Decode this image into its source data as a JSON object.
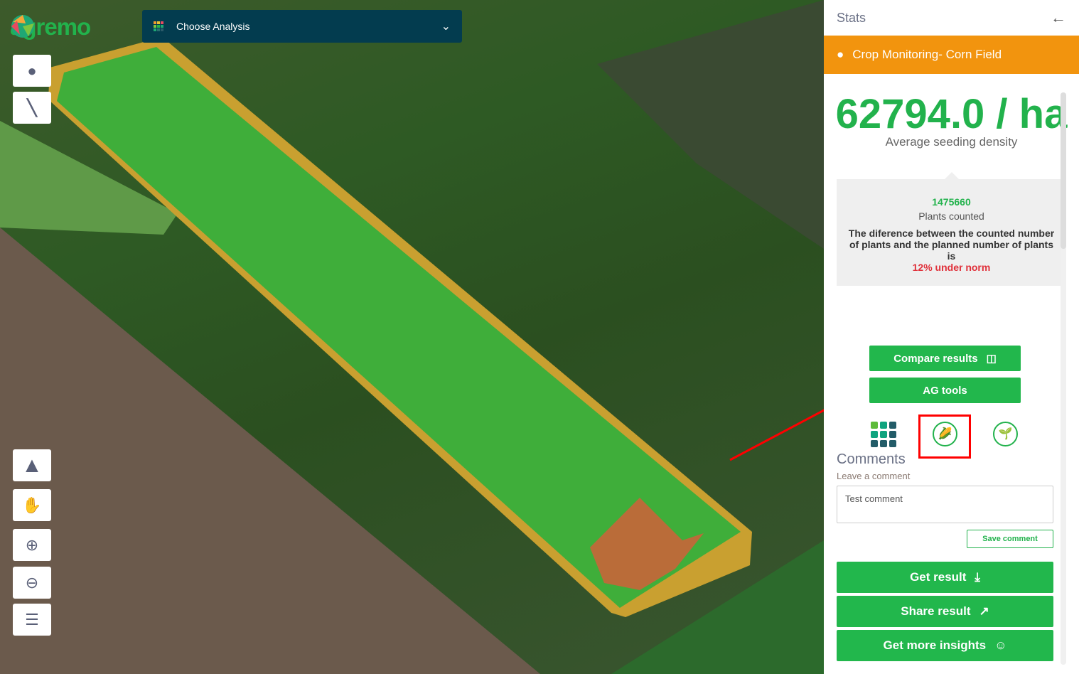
{
  "header": {
    "logo": "agremo",
    "analysis_label": "Choose Analysis"
  },
  "map_tools": [
    "marker-icon",
    "ruler-icon",
    "terrain-icon",
    "gesture-icon",
    "zoom-in-icon",
    "zoom-out-icon",
    "layers-icon"
  ],
  "panel": {
    "title": "Stats",
    "field_name": "Crop Monitoring- Corn Field",
    "density_value": "62794.0 / ha",
    "density_label": "Average seeding density",
    "plants_counted": "1475660",
    "plants_label": "Plants counted",
    "difference_text": "The diference between the counted number of plants and the planned number of plants is",
    "difference_value": "12% under norm",
    "compare_label": "Compare results",
    "ag_tools_label": "AG tools",
    "comments_title": "Comments",
    "comments_sub": "Leave a comment",
    "comment_value": "Test comment",
    "save_comment": "Save comment",
    "get_result": "Get result",
    "share_result": "Share result",
    "insights": "Get more insights"
  },
  "colors": {
    "brand_green": "#22b24c",
    "orange": "#f2940e",
    "navy": "#033c4f",
    "alert_red": "#e0303a"
  }
}
